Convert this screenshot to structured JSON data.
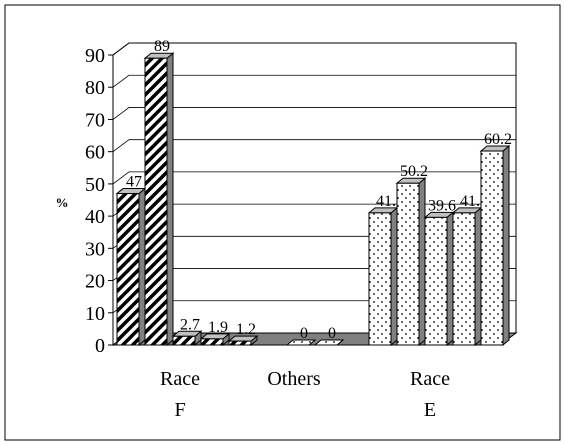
{
  "chart_data": {
    "type": "bar",
    "title": "",
    "xlabel": "",
    "ylabel": "%",
    "ylim": [
      0,
      90
    ],
    "yticks": [
      0,
      10,
      20,
      30,
      40,
      50,
      60,
      70,
      80,
      90
    ],
    "grid": true,
    "legend": "none",
    "groups": [
      {
        "label_line1": "Race",
        "label_line2": "F",
        "values": [
          47,
          89,
          2.7,
          1.9,
          1.2
        ],
        "labels": [
          "47",
          "89",
          "2.7",
          "1.9",
          "1.2"
        ],
        "pattern": "diagonal-stripes"
      },
      {
        "label_line1": "Others",
        "label_line2": "",
        "values": [
          0,
          0
        ],
        "labels": [
          "0",
          "0"
        ],
        "pattern": "dots"
      },
      {
        "label_line1": "Race",
        "label_line2": "E",
        "values": [
          41,
          50.2,
          39.6,
          41,
          60.2
        ],
        "labels": [
          "41.",
          "50.2",
          "39.6",
          "41.",
          "60.2"
        ],
        "pattern": "dots"
      }
    ],
    "colors": {
      "side": "#808080",
      "top": "#c0c0c0",
      "floor": "#808080",
      "wall": "#ffffff",
      "stroke": "#000000"
    }
  }
}
